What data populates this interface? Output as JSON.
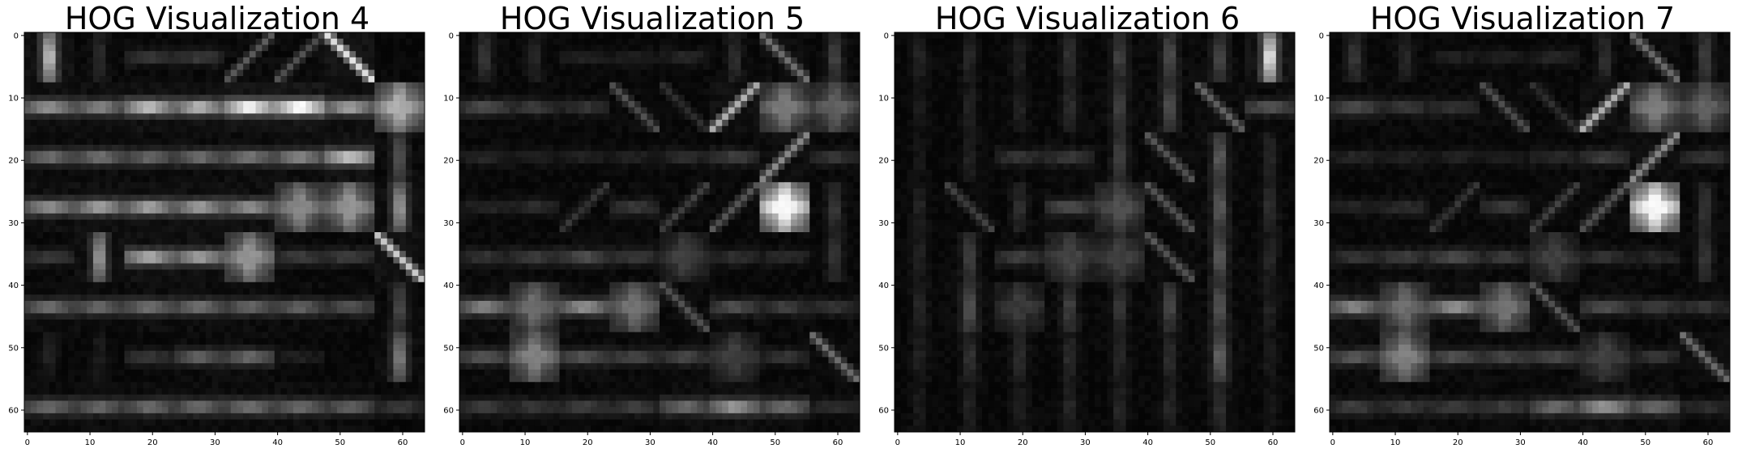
{
  "chart_data": [
    {
      "type": "heatmap",
      "title": "HOG Visualization 4",
      "colormap": "gray",
      "image_shape": [
        64,
        64
      ],
      "cell_size": 8,
      "xlim": [
        -0.5,
        63.5
      ],
      "ylim": [
        63.5,
        -0.5
      ],
      "xticks": [
        0,
        10,
        20,
        30,
        40,
        50,
        60
      ],
      "yticks": [
        0,
        10,
        20,
        30,
        40,
        50,
        60
      ],
      "grid": false,
      "cells": [
        [
          "V.70",
          "V.14",
          "H.18",
          "H.20",
          "D2.32",
          "D2.28",
          "D1.85",
          "N.12"
        ],
        [
          "H.55",
          "H.50",
          "H.72",
          "H.68",
          "H.95",
          "H1.0",
          "H.60",
          "X.65"
        ],
        [
          "H.40",
          "H.42",
          "H.38",
          "H.40",
          "H.45",
          "H.50",
          "H.75",
          "V.30"
        ],
        [
          "H.55",
          "H.60",
          "H.62",
          "H.60",
          "H.55",
          "X.50",
          "X.55",
          "V.55"
        ],
        [
          "H.20",
          "V.55",
          "H.65",
          "H.60",
          "X.55",
          "H.22",
          "H.22",
          "D1.75"
        ],
        [
          "H.40",
          "H.38",
          "H.42",
          "H.42",
          "H.38",
          "H.36",
          "H.30",
          "V.25"
        ],
        [
          "V.10",
          "V.08",
          "H.18",
          "H.35",
          "H.38",
          "H.10",
          "N.05",
          "V.45"
        ],
        [
          "H.40",
          "H.38",
          "H.40",
          "H.40",
          "H.42",
          "H.40",
          "H.35",
          "H.20"
        ]
      ]
    },
    {
      "type": "heatmap",
      "title": "HOG Visualization 5",
      "colormap": "gray",
      "image_shape": [
        64,
        64
      ],
      "cell_size": 8,
      "xlim": [
        -0.5,
        63.5
      ],
      "ylim": [
        63.5,
        -0.5
      ],
      "xticks": [
        0,
        10,
        20,
        30,
        40,
        50,
        60
      ],
      "yticks": [
        0,
        10,
        20,
        30,
        40,
        50,
        60
      ],
      "grid": false,
      "cells": [
        [
          "V.18",
          "V.12",
          "H.10",
          "H.10",
          "H.12",
          "V.15",
          "D1.40",
          "V.22"
        ],
        [
          "H.28",
          "H.20",
          "H.18",
          "D1.28",
          "D1.15",
          "D2.65",
          "X.45",
          "X.35"
        ],
        [
          "H.12",
          "H.10",
          "H.10",
          "H.10",
          "H.14",
          "H.22",
          "D2.50",
          "H.18"
        ],
        [
          "H.12",
          "H.15",
          "D2.18",
          "H.20",
          "D2.22",
          "D2.30",
          "X.95",
          "V.18"
        ],
        [
          "H.18",
          "H.22",
          "H.28",
          "H.20",
          "X.22",
          "H.16",
          "H.14",
          "V.18"
        ],
        [
          "H.50",
          "X.40",
          "H.55",
          "X.42",
          "D1.30",
          "H.28",
          "H.22",
          "H.18"
        ],
        [
          "H.32",
          "X.48",
          "H.30",
          "H.25",
          "H.25",
          "X.22",
          "H.18",
          "D1.40"
        ],
        [
          "H.22",
          "H.20",
          "H.22",
          "H.22",
          "H.40",
          "H.58",
          "H.40",
          "H.15"
        ]
      ]
    },
    {
      "type": "heatmap",
      "title": "HOG Visualization 6",
      "colormap": "gray",
      "image_shape": [
        64,
        64
      ],
      "cell_size": 8,
      "xlim": [
        -0.5,
        63.5
      ],
      "ylim": [
        63.5,
        -0.5
      ],
      "xticks": [
        0,
        10,
        20,
        30,
        40,
        50,
        60
      ],
      "yticks": [
        0,
        10,
        20,
        30,
        40,
        50,
        60
      ],
      "grid": false,
      "cells": [
        [
          "V.10",
          "V.12",
          "V.10",
          "V.16",
          "V.22",
          "V.26",
          "V.24",
          "V.85"
        ],
        [
          "V.08",
          "V.10",
          "V.10",
          "V.14",
          "V.22",
          "V.28",
          "D1.35",
          "H.30"
        ],
        [
          "V.06",
          "V.10",
          "H.18",
          "H.20",
          "V.22",
          "D1.30",
          "V.32",
          "V.12"
        ],
        [
          "V.10",
          "D1.22",
          "V.15",
          "H.28",
          "X.28",
          "D1.30",
          "V.32",
          "V.15"
        ],
        [
          "V.10",
          "V.22",
          "H.22",
          "X.24",
          "X.22",
          "D1.30",
          "V.30",
          "V.12"
        ],
        [
          "V.12",
          "V.30",
          "X.20",
          "V.22",
          "V.18",
          "V.24",
          "V.30",
          "V.10"
        ],
        [
          "V.10",
          "V.16",
          "V.14",
          "V.14",
          "V.12",
          "V.14",
          "V.35",
          "V.08"
        ],
        [
          "V.08",
          "V.10",
          "V.10",
          "V.12",
          "V.12",
          "V.12",
          "V.16",
          "V.06"
        ]
      ]
    },
    {
      "type": "heatmap",
      "title": "HOG Visualization 7",
      "colormap": "gray",
      "image_shape": [
        64,
        64
      ],
      "cell_size": 8,
      "xlim": [
        -0.5,
        63.5
      ],
      "ylim": [
        63.5,
        -0.5
      ],
      "xticks": [
        0,
        10,
        20,
        30,
        40,
        50,
        60
      ],
      "yticks": [
        0,
        10,
        20,
        30,
        40,
        50,
        60
      ],
      "grid": false,
      "cells": [
        [
          "V.18",
          "V.12",
          "H.10",
          "H.10",
          "H.12",
          "V.15",
          "D1.40",
          "V.22"
        ],
        [
          "H.28",
          "H.20",
          "H.18",
          "D1.28",
          "D1.15",
          "D2.65",
          "X.45",
          "X.35"
        ],
        [
          "H.12",
          "H.10",
          "H.10",
          "H.10",
          "H.14",
          "H.22",
          "D2.50",
          "H.18"
        ],
        [
          "H.12",
          "H.15",
          "D2.18",
          "H.20",
          "D2.22",
          "D2.30",
          "X.95",
          "V.18"
        ],
        [
          "H.18",
          "H.22",
          "H.28",
          "H.20",
          "X.22",
          "H.16",
          "H.14",
          "V.18"
        ],
        [
          "H.50",
          "X.40",
          "H.55",
          "X.42",
          "D1.30",
          "H.28",
          "H.22",
          "H.18"
        ],
        [
          "H.32",
          "X.48",
          "H.30",
          "H.25",
          "H.25",
          "X.22",
          "H.18",
          "D1.40"
        ],
        [
          "H.22",
          "H.20",
          "H.22",
          "H.22",
          "H.40",
          "H.58",
          "H.40",
          "H.15"
        ]
      ]
    }
  ]
}
